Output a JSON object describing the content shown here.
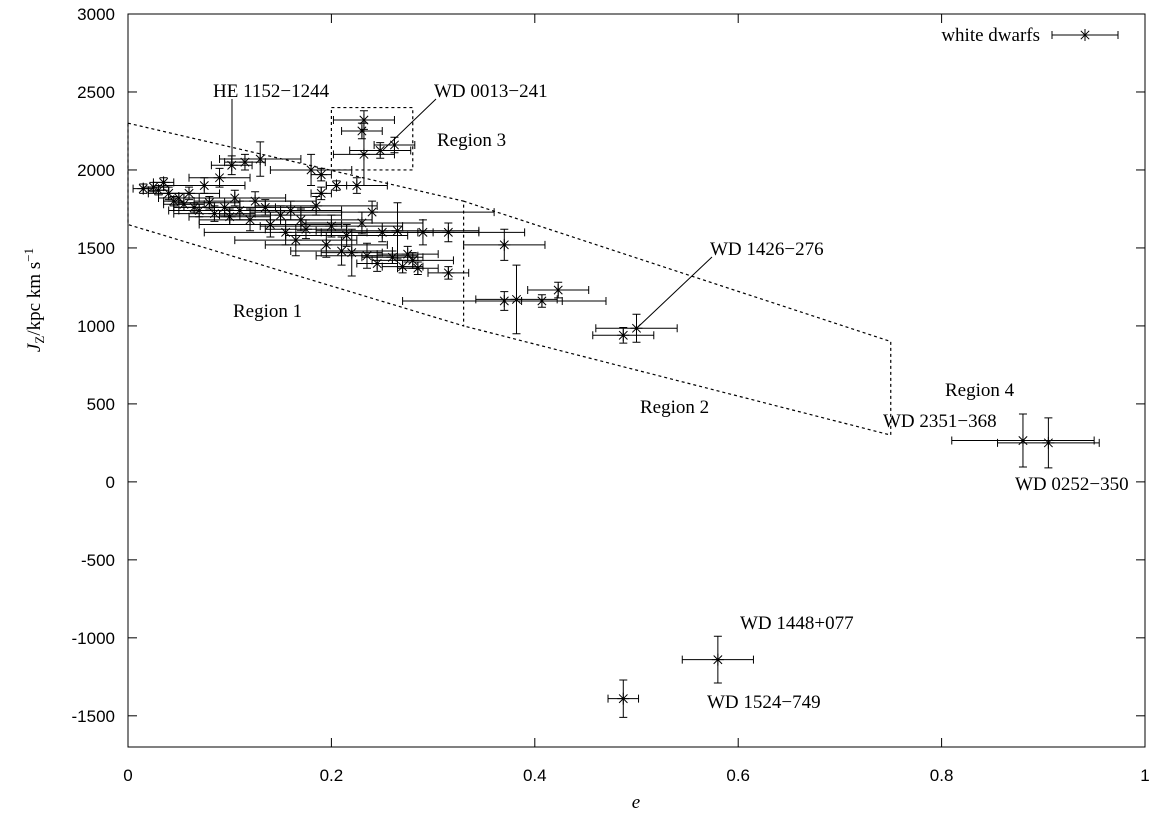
{
  "chart_data": {
    "type": "scatter",
    "xlabel": "e",
    "ylabel": {
      "symbol": "J",
      "sub": "Z",
      "unit": "/kpc km s",
      "sup": "−1"
    },
    "xlim": [
      0,
      1
    ],
    "xticks": [
      0,
      0.2,
      0.4,
      0.6,
      0.8,
      1
    ],
    "ylim": [
      -1700,
      3000
    ],
    "yticks": [
      -1500,
      -1000,
      -500,
      0,
      500,
      1000,
      1500,
      2000,
      2500,
      3000
    ],
    "legend": "top-right",
    "series": [
      {
        "name": "white dwarfs",
        "color": "#000000",
        "x": [
          0.015,
          0.025,
          0.03,
          0.035,
          0.04,
          0.045,
          0.05,
          0.055,
          0.06,
          0.065,
          0.07,
          0.075,
          0.08,
          0.085,
          0.09,
          0.095,
          0.1,
          0.105,
          0.11,
          0.115,
          0.12,
          0.125,
          0.13,
          0.135,
          0.14,
          0.15,
          0.155,
          0.16,
          0.165,
          0.17,
          0.175,
          0.18,
          0.185,
          0.19,
          0.19,
          0.195,
          0.2,
          0.205,
          0.21,
          0.215,
          0.22,
          0.225,
          0.23,
          0.232,
          0.23,
          0.232,
          0.235,
          0.24,
          0.245,
          0.25,
          0.26,
          0.262,
          0.265,
          0.27,
          0.275,
          0.28,
          0.285,
          0.29,
          0.315,
          0.315,
          0.37,
          0.37,
          0.382,
          0.407,
          0.423,
          0.487,
          0.5,
          0.88,
          0.905,
          0.58,
          0.487,
          0.102,
          0.248
        ],
        "values": [
          1880,
          1890,
          1870,
          1920,
          1850,
          1800,
          1820,
          1780,
          1850,
          1760,
          1740,
          1900,
          1790,
          1720,
          1950,
          1760,
          1700,
          1820,
          1740,
          2050,
          1680,
          1800,
          2070,
          1760,
          1650,
          1710,
          1600,
          1740,
          1550,
          1680,
          1620,
          2000,
          1770,
          1970,
          1850,
          1520,
          1640,
          1900,
          1480,
          1580,
          1470,
          1900,
          1660,
          2320,
          2250,
          2100,
          1450,
          1730,
          1400,
          1600,
          1440,
          2160,
          1610,
          1380,
          1460,
          1420,
          1370,
          1600,
          1600,
          1340,
          1520,
          1160,
          1170,
          1160,
          1230,
          940,
          985,
          265,
          250,
          -1140,
          -1390,
          2030,
          2125
        ],
        "xerr": [
          0.01,
          0.01,
          0.01,
          0.01,
          0.02,
          0.01,
          0.02,
          0.02,
          0.03,
          0.02,
          0.03,
          0.04,
          0.03,
          0.04,
          0.03,
          0.05,
          0.04,
          0.05,
          0.06,
          0.02,
          0.05,
          0.06,
          0.04,
          0.05,
          0.07,
          0.06,
          0.08,
          0.05,
          0.06,
          0.07,
          0.04,
          0.04,
          0.06,
          0.01,
          0.01,
          0.06,
          0.07,
          0.01,
          0.05,
          0.06,
          0.03,
          0.03,
          0.06,
          0.03,
          0.02,
          0.03,
          0.05,
          0.12,
          0.02,
          0.05,
          0.03,
          0.02,
          0.08,
          0.02,
          0.03,
          0.04,
          0.02,
          0.1,
          0.03,
          0.02,
          0.04,
          0.1,
          0.04,
          0.02,
          0.03,
          0.03,
          0.04,
          0.07,
          0.05,
          0.035,
          0.015,
          0.02,
          0.03
        ],
        "yerr": [
          30,
          30,
          30,
          30,
          40,
          30,
          30,
          40,
          40,
          30,
          40,
          50,
          40,
          50,
          60,
          60,
          50,
          50,
          60,
          50,
          70,
          60,
          110,
          50,
          80,
          60,
          80,
          60,
          100,
          70,
          60,
          100,
          60,
          40,
          40,
          80,
          70,
          30,
          90,
          70,
          150,
          50,
          70,
          60,
          50,
          200,
          80,
          70,
          50,
          60,
          40,
          50,
          180,
          40,
          50,
          50,
          40,
          80,
          60,
          40,
          100,
          60,
          220,
          40,
          50,
          50,
          90,
          170,
          160,
          150,
          120,
          60,
          50
        ]
      }
    ],
    "region_outlines": [
      {
        "x": [
          0,
          0.33,
          0.33,
          0,
          0
        ],
        "y": [
          2300,
          1800,
          1000,
          1650,
          2300
        ]
      },
      {
        "x": [
          0.33,
          0.75,
          0.75,
          0.33
        ],
        "y": [
          1800,
          900,
          300,
          1000
        ]
      },
      {
        "x": [
          0.2,
          0.28,
          0.28,
          0.2,
          0.2
        ],
        "y": [
          2400,
          2400,
          2000,
          2000,
          2400
        ]
      }
    ],
    "annotations": [
      "HE 1152−1244",
      "WD 0013−241",
      "Region 3",
      "WD 1426−276",
      "Region 1",
      "Region 2",
      "Region 4",
      "WD 2351−368",
      "WD 0252−350",
      "WD 1448+077",
      "WD 1524−749"
    ]
  }
}
